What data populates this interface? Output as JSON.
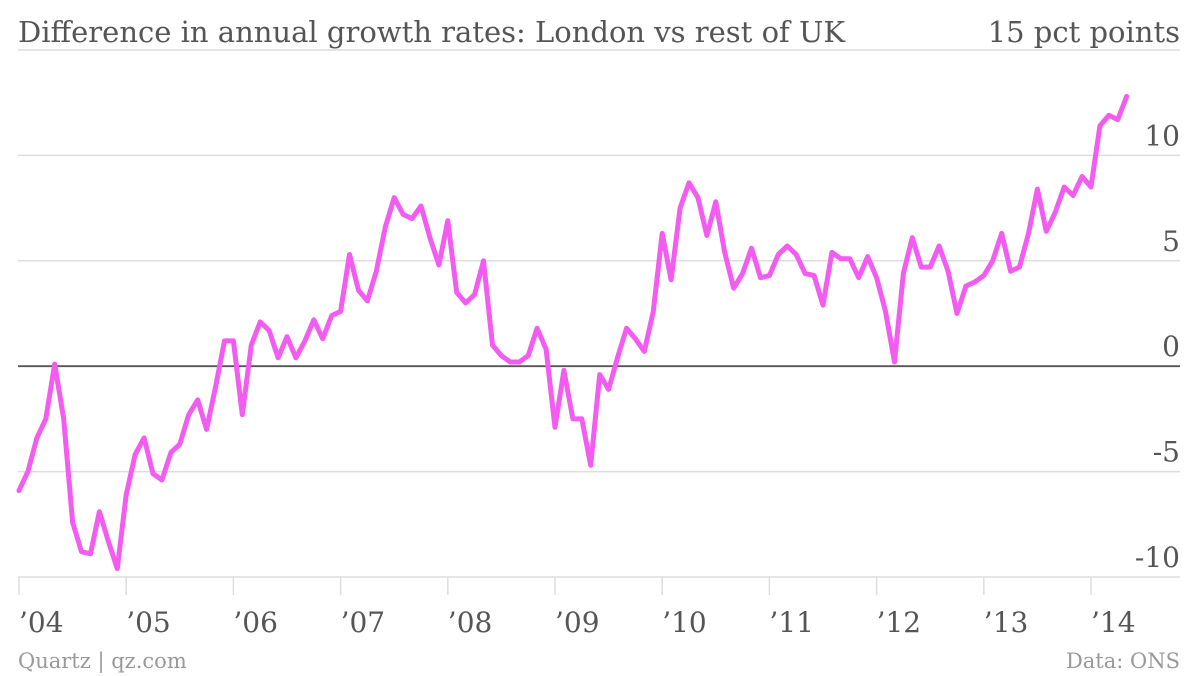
{
  "footer": {
    "source_left": "Quartz | qz.com",
    "source_right": "Data: ONS"
  },
  "colors": {
    "line": "#f25cf0",
    "grid": "#dddddd",
    "zero": "#555555",
    "text": "#555555",
    "footer": "#999999"
  },
  "chart_data": {
    "type": "line",
    "title": "Difference in annual growth rates: London vs rest of UK",
    "subtitle": "",
    "xlabel": "",
    "ylabel": "",
    "top_tick_label": "15 pct points",
    "ylim": [
      -10,
      15
    ],
    "yticks": [
      {
        "value": 10,
        "label": "10"
      },
      {
        "value": 5,
        "label": "5"
      },
      {
        "value": 0,
        "label": "0"
      },
      {
        "value": -5,
        "label": "-5"
      },
      {
        "value": -10,
        "label": "-10"
      }
    ],
    "xlim": [
      2004.0,
      2014.8
    ],
    "xticks": [
      {
        "value": 2004,
        "label": "’04"
      },
      {
        "value": 2005,
        "label": "’05"
      },
      {
        "value": 2006,
        "label": "’06"
      },
      {
        "value": 2007,
        "label": "’07"
      },
      {
        "value": 2008,
        "label": "’08"
      },
      {
        "value": 2009,
        "label": "’09"
      },
      {
        "value": 2010,
        "label": "’10"
      },
      {
        "value": 2011,
        "label": "’11"
      },
      {
        "value": 2012,
        "label": "’12"
      },
      {
        "value": 2013,
        "label": "’13"
      },
      {
        "value": 2014,
        "label": "’14"
      }
    ],
    "grid": true,
    "legend": "none",
    "series": [
      {
        "name": "",
        "frequency": "monthly",
        "start": "2004-01",
        "values": [
          -5.9,
          -5.0,
          -3.4,
          -2.5,
          0.1,
          -2.5,
          -7.4,
          -8.8,
          -8.9,
          -6.9,
          -8.3,
          -9.6,
          -6.1,
          -4.2,
          -3.4,
          -5.1,
          -5.4,
          -4.1,
          -3.7,
          -2.3,
          -1.6,
          -3.0,
          -1.0,
          1.2,
          1.2,
          -2.3,
          1.0,
          2.1,
          1.7,
          0.4,
          1.4,
          0.4,
          1.2,
          2.2,
          1.3,
          2.4,
          2.6,
          5.3,
          3.6,
          3.1,
          4.5,
          6.6,
          8.0,
          7.2,
          7.0,
          7.6,
          6.1,
          4.8,
          6.9,
          3.5,
          3.0,
          3.4,
          5.0,
          1.0,
          0.5,
          0.2,
          0.2,
          0.5,
          1.8,
          0.8,
          -2.9,
          -0.2,
          -2.5,
          -2.5,
          -4.7,
          -0.4,
          -1.1,
          0.4,
          1.8,
          1.3,
          0.7,
          2.6,
          6.3,
          4.1,
          7.5,
          8.7,
          8.0,
          6.2,
          7.8,
          5.4,
          3.7,
          4.4,
          5.6,
          4.2,
          4.3,
          5.3,
          5.7,
          5.3,
          4.4,
          4.3,
          2.9,
          5.4,
          5.1,
          5.1,
          4.2,
          5.2,
          4.2,
          2.6,
          0.2,
          4.4,
          6.1,
          4.7,
          4.7,
          5.7,
          4.5,
          2.5,
          3.8,
          4.0,
          4.3,
          5.0,
          6.3,
          4.5,
          4.7,
          6.3,
          8.4,
          6.4,
          7.3,
          8.5,
          8.1,
          9.0,
          8.5,
          11.4,
          11.9,
          11.7,
          12.8
        ]
      }
    ]
  }
}
